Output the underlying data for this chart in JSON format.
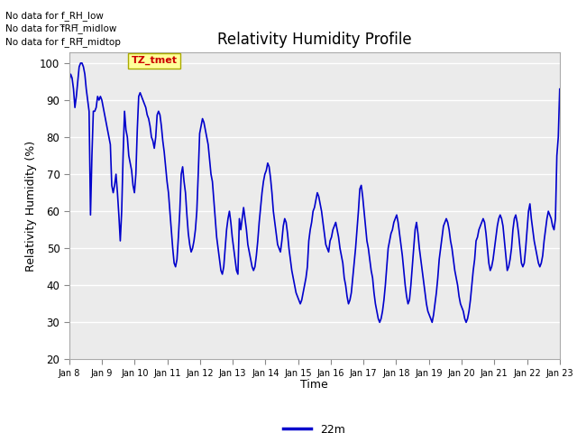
{
  "title": "Relativity Humidity Profile",
  "xlabel": "Time",
  "ylabel": "Relativity Humidity (%)",
  "ylim": [
    20,
    103
  ],
  "yticks": [
    20,
    30,
    40,
    50,
    60,
    70,
    80,
    90,
    100
  ],
  "line_color": "#0000cc",
  "line_width": 1.2,
  "fig_facecolor": "#ffffff",
  "plot_bg_color": "#ebebeb",
  "legend_label": "22m",
  "annotations": [
    "No data for f_RH_low",
    "No data for f̅RH̅_midlow",
    "No data for f_RH̅_midtop"
  ],
  "annotations_raw": [
    "No data for f_RH_low",
    "No data for f RH midlow",
    "No data for f RH midtop"
  ],
  "tooltip_text": "TZ_tmet",
  "tooltip_color": "#cc0000",
  "tooltip_bg": "#ffff99",
  "xtick_labels": [
    "Jan 8",
    "Jan 9",
    "Jan 10",
    "Jan 11",
    "Jan 12",
    "Jan 13",
    "Jan 14",
    "Jan 15",
    "Jan 16",
    "Jan 17",
    "Jan 18",
    "Jan 19",
    "Jan 20",
    "Jan 21",
    "Jan 22",
    "Jan 23"
  ],
  "rh_data": [
    95,
    97,
    96,
    93,
    88,
    91,
    95,
    99,
    100,
    100,
    99,
    97,
    93,
    90,
    87,
    59,
    75,
    87,
    87,
    88,
    91,
    90,
    91,
    90,
    88,
    86,
    84,
    82,
    80,
    78,
    67,
    65,
    67,
    70,
    65,
    59,
    52,
    60,
    75,
    87,
    82,
    80,
    75,
    73,
    71,
    67,
    65,
    70,
    82,
    91,
    92,
    91,
    90,
    89,
    88,
    86,
    85,
    83,
    80,
    79,
    77,
    80,
    86,
    87,
    86,
    83,
    79,
    76,
    72,
    68,
    65,
    60,
    55,
    50,
    46,
    45,
    47,
    53,
    60,
    70,
    72,
    68,
    65,
    59,
    54,
    51,
    49,
    50,
    52,
    55,
    60,
    70,
    81,
    83,
    85,
    84,
    82,
    80,
    78,
    74,
    70,
    68,
    63,
    58,
    53,
    50,
    47,
    44,
    43,
    45,
    50,
    55,
    58,
    60,
    57,
    53,
    50,
    47,
    44,
    43,
    58,
    55,
    58,
    61,
    58,
    55,
    51,
    49,
    47,
    45,
    44,
    45,
    48,
    52,
    57,
    61,
    65,
    68,
    70,
    71,
    73,
    72,
    69,
    65,
    60,
    57,
    54,
    51,
    50,
    49,
    52,
    56,
    58,
    57,
    54,
    50,
    47,
    44,
    42,
    40,
    38,
    37,
    36,
    35,
    36,
    38,
    40,
    42,
    45,
    52,
    55,
    57,
    60,
    61,
    63,
    65,
    64,
    62,
    60,
    57,
    54,
    51,
    50,
    49,
    52,
    53,
    55,
    56,
    57,
    55,
    53,
    50,
    48,
    46,
    42,
    40,
    37,
    35,
    36,
    38,
    42,
    46,
    50,
    55,
    60,
    66,
    67,
    64,
    60,
    56,
    52,
    50,
    47,
    44,
    42,
    38,
    35,
    33,
    31,
    30,
    31,
    33,
    36,
    40,
    45,
    50,
    52,
    54,
    55,
    57,
    58,
    59,
    57,
    54,
    51,
    48,
    44,
    40,
    37,
    35,
    36,
    40,
    45,
    50,
    55,
    57,
    54,
    50,
    47,
    44,
    41,
    38,
    35,
    33,
    32,
    31,
    30,
    32,
    35,
    38,
    42,
    47,
    50,
    53,
    56,
    57,
    58,
    57,
    55,
    52,
    50,
    47,
    44,
    42,
    40,
    37,
    35,
    34,
    33,
    31,
    30,
    31,
    33,
    36,
    40,
    44,
    47,
    52,
    53,
    55,
    56,
    57,
    58,
    57,
    54,
    50,
    46,
    44,
    45,
    47,
    50,
    53,
    56,
    58,
    59,
    58,
    56,
    52,
    48,
    44,
    45,
    47,
    50,
    55,
    58,
    59,
    57,
    54,
    50,
    46,
    45,
    46,
    50,
    55,
    60,
    62,
    58,
    55,
    52,
    50,
    48,
    46,
    45,
    46,
    48,
    52,
    55,
    58,
    60,
    59,
    58,
    56,
    55,
    58,
    75,
    80,
    93
  ]
}
